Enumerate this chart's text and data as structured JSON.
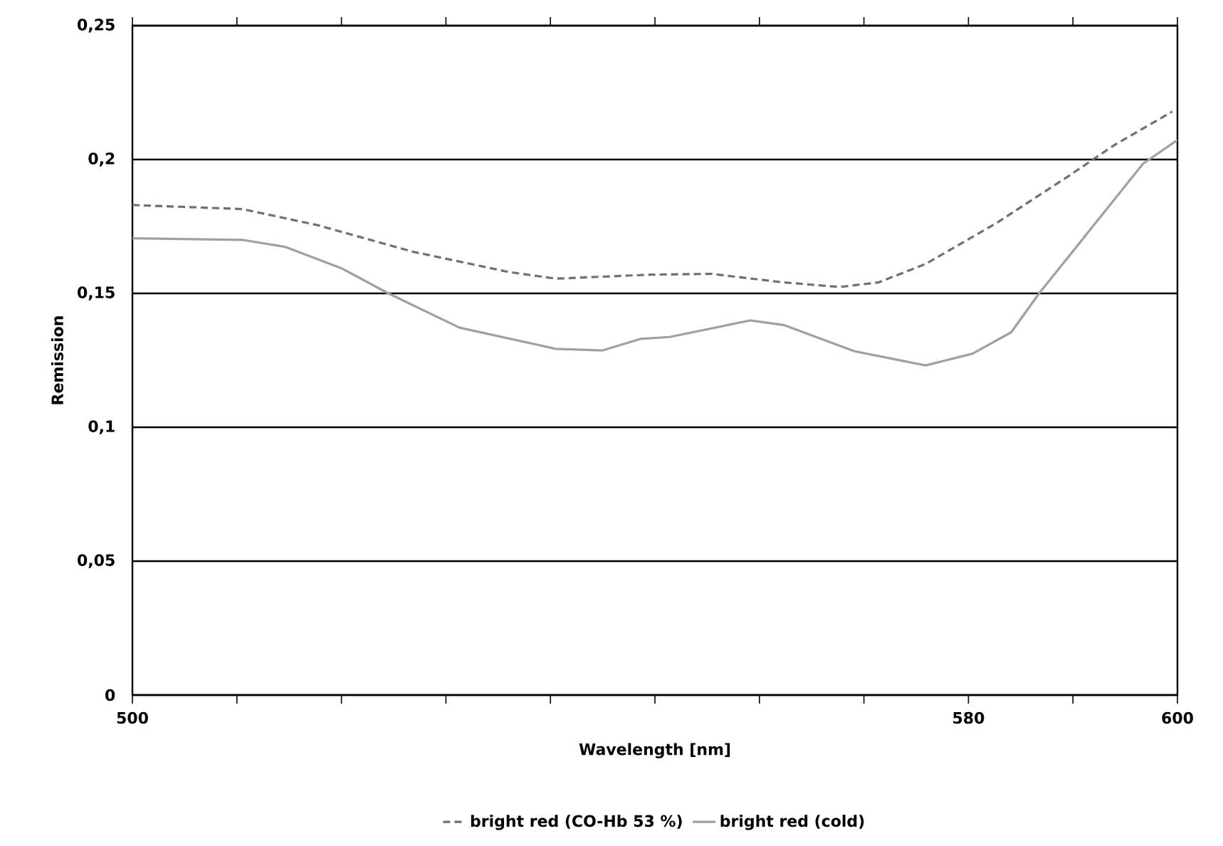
{
  "chart_data": {
    "type": "line",
    "xlabel": "Wavelength [nm]",
    "ylabel": "Remission",
    "xlim": [
      500,
      600
    ],
    "xticks": [
      500,
      {
        "value": 510,
        "label": null
      },
      {
        "value": 520,
        "label": null
      },
      {
        "value": 530,
        "label": null
      },
      {
        "value": 540,
        "label": null
      },
      {
        "value": 550,
        "label": null
      },
      {
        "value": 560,
        "label": null
      },
      {
        "value": 570,
        "label": null
      },
      580,
      {
        "value": 590,
        "label": null
      },
      600
    ],
    "ylim": [
      0,
      0.25
    ],
    "yticks": [
      0,
      {
        "value": 0.05,
        "label": "0,05"
      },
      {
        "value": 0.1,
        "label": "0,1"
      },
      {
        "value": 0.15,
        "label": "0,15"
      },
      {
        "value": 0.2,
        "label": "0,2"
      },
      {
        "value": 0.25,
        "label": "0,25"
      }
    ],
    "grid": "y",
    "legend": "bottom",
    "series": [
      {
        "name": "bright red (CO-Hb 53 %)",
        "color": "#707070",
        "line_style": "dashed",
        "x": [
          500,
          510.5,
          517.7,
          526.8,
          536,
          540.5,
          549.6,
          555.4,
          562.3,
          567.7,
          571.4,
          575.9,
          582.7,
          589.5,
          594,
          599.5
        ],
        "values": [
          0.183,
          0.1815,
          0.1755,
          0.1656,
          0.158,
          0.1555,
          0.157,
          0.1573,
          0.1541,
          0.1524,
          0.1541,
          0.161,
          0.1763,
          0.1936,
          0.2055,
          0.2179
        ]
      },
      {
        "name": "bright red (cold)",
        "color": "#a0a0a0",
        "line_style": "solid",
        "x": [
          500,
          510.5,
          514.6,
          520,
          524.5,
          531.3,
          540.5,
          545,
          548.6,
          551.4,
          559.1,
          562.3,
          569.1,
          575.9,
          580.4,
          584.1,
          586.8,
          591.8,
          596.7,
          600
        ],
        "values": [
          0.1706,
          0.17,
          0.1674,
          0.1594,
          0.15,
          0.1372,
          0.1293,
          0.1287,
          0.133,
          0.1337,
          0.1399,
          0.1382,
          0.1284,
          0.1231,
          0.1275,
          0.1355,
          0.1502,
          0.1745,
          0.1984,
          0.2073
        ]
      }
    ]
  }
}
